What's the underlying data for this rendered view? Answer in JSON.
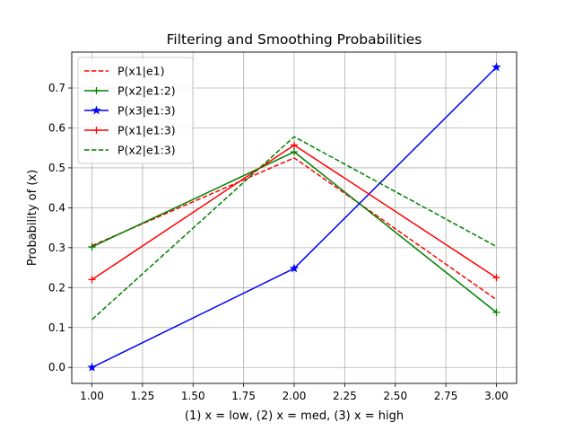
{
  "chart_data": {
    "type": "line",
    "title": "Filtering and Smoothing Probabilities",
    "xlabel": "(1) x = low, (2) x = med, (3) x = high",
    "ylabel": "Probability of (x)",
    "xlim": [
      0.9,
      3.1
    ],
    "ylim": [
      -0.04,
      0.79
    ],
    "xticks": [
      1.0,
      1.25,
      1.5,
      1.75,
      2.0,
      2.25,
      2.5,
      2.75,
      3.0
    ],
    "xtick_labels": [
      "1.00",
      "1.25",
      "1.50",
      "1.75",
      "2.00",
      "2.25",
      "2.50",
      "2.75",
      "3.00"
    ],
    "yticks": [
      0.0,
      0.1,
      0.2,
      0.3,
      0.4,
      0.5,
      0.6,
      0.7
    ],
    "ytick_labels": [
      "0.0",
      "0.1",
      "0.2",
      "0.3",
      "0.4",
      "0.5",
      "0.6",
      "0.7"
    ],
    "grid": true,
    "legend_position": "top-left",
    "x": [
      1,
      2,
      3
    ],
    "series": [
      {
        "name": "P(x1|e1)",
        "values": [
          0.305,
          0.525,
          0.17
        ],
        "color": "#ff0000",
        "dash": "dashed",
        "marker": "none"
      },
      {
        "name": "P(x2|e1:2)",
        "values": [
          0.302,
          0.54,
          0.138
        ],
        "color": "#008000",
        "dash": "solid",
        "marker": "plus"
      },
      {
        "name": "P(x3|e1:3)",
        "values": [
          0.0,
          0.248,
          0.752
        ],
        "color": "#0000ff",
        "dash": "solid",
        "marker": "star"
      },
      {
        "name": "P(x1|e1:3)",
        "values": [
          0.22,
          0.557,
          0.225
        ],
        "color": "#ff0000",
        "dash": "solid",
        "marker": "plus"
      },
      {
        "name": "P(x2|e1:3)",
        "values": [
          0.12,
          0.578,
          0.303
        ],
        "color": "#008000",
        "dash": "dashed",
        "marker": "none"
      }
    ]
  }
}
